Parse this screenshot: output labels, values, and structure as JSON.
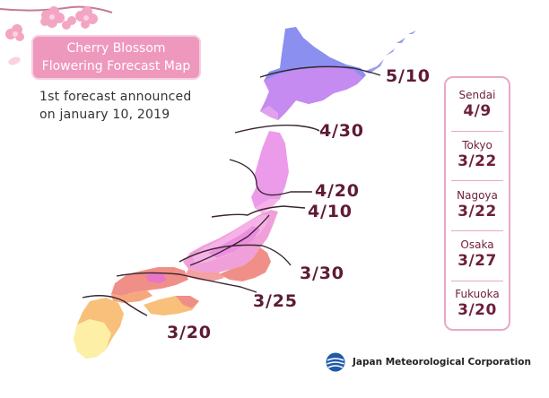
{
  "title": {
    "line1": "Cherry Blossom",
    "line2": "Flowering Forecast Map"
  },
  "subtitle": {
    "line1": "1st forecast announced",
    "line2": "on january 10, 2019"
  },
  "isolines": [
    {
      "date": "5/10"
    },
    {
      "date": "4/30"
    },
    {
      "date": "4/20"
    },
    {
      "date": "4/10"
    },
    {
      "date": "3/30"
    },
    {
      "date": "3/25"
    },
    {
      "date": "3/20"
    }
  ],
  "cities": [
    {
      "name": "Sendai",
      "date": "4/9"
    },
    {
      "name": "Tokyo",
      "date": "3/22"
    },
    {
      "name": "Nagoya",
      "date": "3/22"
    },
    {
      "name": "Osaka",
      "date": "3/27"
    },
    {
      "name": "Fukuoka",
      "date": "3/20"
    }
  ],
  "attribution": {
    "text": "Japan Meteorological Corporation",
    "icon": "jmc-logo-icon"
  },
  "colors": {
    "title_bg": "#ef98bd",
    "zone_may10": "#8a8ff0",
    "zone_apr30": "#c58bf0",
    "zone_apr20": "#ec9bea",
    "zone_apr10": "#f5b2e6",
    "zone_mar30": "#f08f88",
    "zone_mar25": "#f8c07a",
    "zone_mar20": "#fdf0a6",
    "label_text": "#5e1a36",
    "panel_border": "#e9a8c6"
  },
  "decoration": {
    "icon": "cherry-blossom-icon"
  }
}
